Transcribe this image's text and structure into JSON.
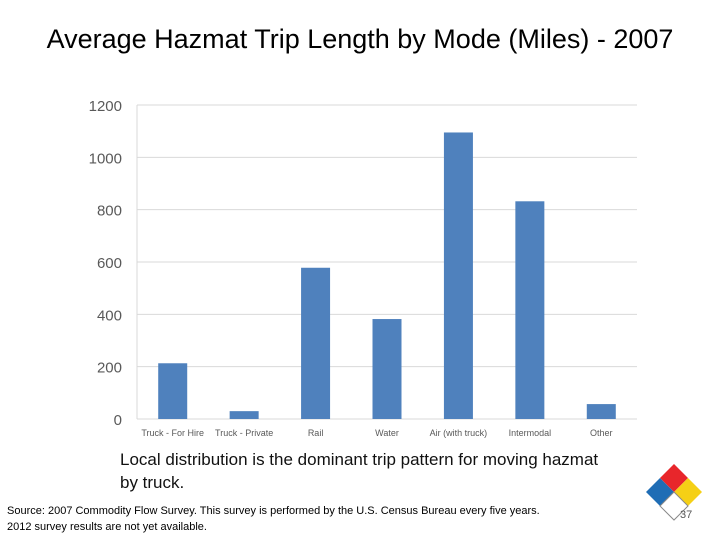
{
  "title": "Average Hazmat Trip Length by Mode (Miles) - 2007",
  "caption": "Local distribution is the dominant trip pattern for moving hazmat by truck.",
  "source": {
    "line1": "Source: 2007 Commodity Flow Survey. This survey is performed by the U.S. Census Bureau every five years.",
    "line2": "2012 survey results are not yet available."
  },
  "page_number": "37",
  "colors": {
    "bar": "#4f81bd",
    "grid": "#d9d9d9",
    "logo_red": "#e8262b",
    "logo_blue": "#1f6db5",
    "logo_yellow": "#f5d016"
  },
  "chart_data": {
    "type": "bar",
    "title": "",
    "xlabel": "",
    "ylabel": "",
    "categories": [
      "Truck - For Hire",
      "Truck - Private",
      "Rail",
      "Water",
      "Air (with truck)",
      "Intermodal",
      "Other"
    ],
    "values": [
      213,
      30,
      578,
      382,
      1095,
      832,
      57
    ],
    "ylim": [
      0,
      1200
    ],
    "yticks": [
      0,
      200,
      400,
      600,
      800,
      1000,
      1200
    ],
    "grid": true,
    "legend": "none"
  }
}
